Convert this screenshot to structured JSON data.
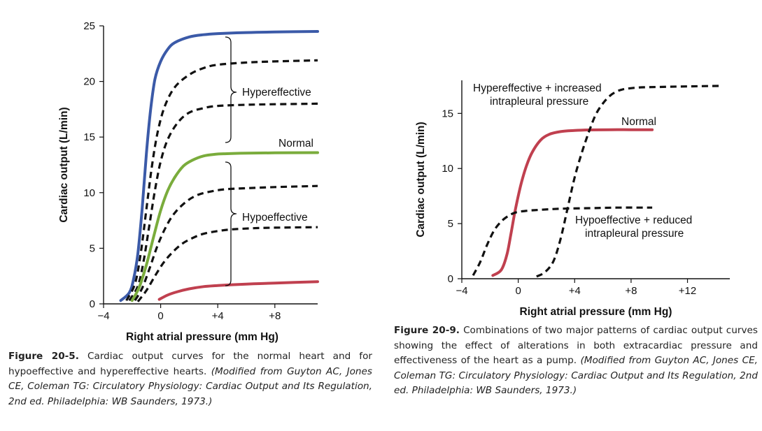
{
  "chart_data": [
    {
      "type": "line",
      "xlabel": "Right atrial pressure (mm Hg)",
      "ylabel": "Cardiac output (L/min)",
      "xlim": [
        -4,
        11
      ],
      "ylim": [
        0,
        25
      ],
      "x_ticks": [
        -4,
        0,
        4,
        8
      ],
      "x_tick_labels": [
        "−4",
        "0",
        "+4",
        "+8"
      ],
      "y_ticks": [
        0,
        5,
        10,
        15,
        20,
        25
      ],
      "y_tick_labels": [
        "0",
        "5",
        "10",
        "15",
        "20",
        "25"
      ],
      "grid": false,
      "series": [
        {
          "color": "#3b5aa8",
          "dash": false,
          "x": [
            -2.8,
            -2.2,
            -1.9,
            -1.6,
            -1.3,
            -1.0,
            -0.7,
            -0.4,
            0.0,
            0.5,
            1.0,
            2.0,
            3.0,
            4.0,
            6.0,
            8.0,
            11.0
          ],
          "y": [
            0.3,
            1.0,
            2.2,
            4.5,
            8.5,
            13.5,
            17.5,
            20.2,
            21.8,
            22.9,
            23.5,
            24.0,
            24.2,
            24.3,
            24.4,
            24.45,
            24.5
          ]
        },
        {
          "color": "#111111",
          "dash": true,
          "x": [
            -2.4,
            -1.8,
            -1.4,
            -1.0,
            -0.6,
            -0.2,
            0.3,
            1.0,
            2.0,
            3.0,
            4.0,
            6.0,
            8.0,
            11.0
          ],
          "y": [
            0.3,
            1.8,
            4.5,
            8.5,
            12.5,
            15.5,
            17.8,
            19.5,
            20.6,
            21.2,
            21.5,
            21.7,
            21.8,
            21.9
          ]
        },
        {
          "color": "#111111",
          "dash": true,
          "x": [
            -2.2,
            -1.6,
            -1.2,
            -0.8,
            -0.4,
            0.0,
            0.5,
            1.2,
            2.0,
            3.0,
            4.0,
            6.0,
            8.0,
            11.0
          ],
          "y": [
            0.3,
            1.6,
            3.8,
            7.0,
            10.2,
            12.8,
            14.8,
            16.3,
            17.2,
            17.6,
            17.8,
            17.9,
            17.95,
            18.0
          ]
        },
        {
          "color": "#7aac3c",
          "dash": false,
          "x": [
            -2.0,
            -1.5,
            -1.0,
            -0.5,
            0.0,
            0.5,
            1.0,
            1.6,
            2.2,
            3.0,
            3.8,
            4.5,
            6.0,
            8.0,
            11.0
          ],
          "y": [
            0.3,
            1.5,
            3.5,
            6.0,
            8.4,
            10.2,
            11.4,
            12.4,
            12.9,
            13.3,
            13.45,
            13.5,
            13.55,
            13.58,
            13.6
          ]
        },
        {
          "color": "#111111",
          "dash": true,
          "x": [
            -1.8,
            -1.3,
            -0.8,
            -0.2,
            0.4,
            1.0,
            1.8,
            2.6,
            3.5,
            4.5,
            6.0,
            8.0,
            11.0
          ],
          "y": [
            0.3,
            1.4,
            3.1,
            5.3,
            7.0,
            8.2,
            9.2,
            9.8,
            10.1,
            10.3,
            10.4,
            10.5,
            10.6
          ]
        },
        {
          "color": "#111111",
          "dash": true,
          "x": [
            -1.6,
            -1.0,
            -0.4,
            0.2,
            0.8,
            1.5,
            2.2,
            3.0,
            4.0,
            5.0,
            6.5,
            8.0,
            11.0
          ],
          "y": [
            0.2,
            1.2,
            2.5,
            3.7,
            4.6,
            5.4,
            5.9,
            6.3,
            6.55,
            6.7,
            6.8,
            6.85,
            6.9
          ]
        },
        {
          "color": "#c0404f",
          "dash": false,
          "x": [
            -0.1,
            0.5,
            1.2,
            2.0,
            3.0,
            4.0,
            5.0,
            6.5,
            8.0,
            11.0
          ],
          "y": [
            0.4,
            0.8,
            1.1,
            1.35,
            1.55,
            1.65,
            1.72,
            1.8,
            1.87,
            2.0
          ]
        }
      ],
      "annotations": [
        "Hypereffective",
        "Normal",
        "Hypoeffective"
      ]
    },
    {
      "type": "line",
      "xlabel": "Right atrial pressure (mm Hg)",
      "ylabel": "Cardiac output (L/min)",
      "xlim": [
        -4,
        15
      ],
      "ylim": [
        0,
        18
      ],
      "x_ticks": [
        -4,
        0,
        4,
        8,
        12
      ],
      "x_tick_labels": [
        "−4",
        "0",
        "+4",
        "+8",
        "+12"
      ],
      "y_ticks": [
        0,
        5,
        10,
        15
      ],
      "y_tick_labels": [
        "0",
        "5",
        "10",
        "15"
      ],
      "grid": false,
      "series": [
        {
          "color": "#c0404f",
          "dash": false,
          "x": [
            -1.8,
            -1.2,
            -0.8,
            -0.5,
            -0.2,
            0.2,
            0.6,
            1.0,
            1.6,
            2.2,
            3.0,
            4.0,
            5.0,
            6.5,
            8.0,
            9.5
          ],
          "y": [
            0.3,
            0.8,
            2.2,
            4.2,
            6.3,
            8.6,
            10.3,
            11.5,
            12.6,
            13.1,
            13.35,
            13.45,
            13.5,
            13.52,
            13.52,
            13.52
          ]
        },
        {
          "color": "#111111",
          "dash": true,
          "x": [
            -3.2,
            -2.7,
            -2.2,
            -1.7,
            -1.2,
            -0.7,
            -0.2,
            0.5,
            1.5,
            3.0,
            5.0,
            7.0,
            9.5
          ],
          "y": [
            0.3,
            1.5,
            3.1,
            4.4,
            5.2,
            5.7,
            6.0,
            6.15,
            6.25,
            6.35,
            6.4,
            6.45,
            6.45
          ]
        },
        {
          "color": "#111111",
          "dash": true,
          "x": [
            1.3,
            1.9,
            2.5,
            3.0,
            3.5,
            4.0,
            4.5,
            5.0,
            5.5,
            6.0,
            6.5,
            7.0,
            7.5,
            8.5,
            10.0,
            12.0,
            14.5
          ],
          "y": [
            0.2,
            0.6,
            1.6,
            3.6,
            6.4,
            9.2,
            11.4,
            13.3,
            14.9,
            15.9,
            16.6,
            17.0,
            17.2,
            17.35,
            17.4,
            17.45,
            17.5
          ]
        }
      ],
      "annotations": [
        "Hypereffective + increased intrapleural pressure",
        "Normal",
        "Hypoeffective + reduced intrapleural pressure"
      ]
    }
  ],
  "labels": {
    "hyper": "Hypereffective",
    "normal": "Normal",
    "hypo": "Hypoeffective",
    "r_hyper_1": "Hypereffective + increased",
    "r_hyper_2": "intrapleural pressure",
    "r_normal": "Normal",
    "r_hypo_1": "Hypoeffective + reduced",
    "r_hypo_2": "intrapleural pressure"
  },
  "captions": {
    "left": {
      "label": "Figure 20-5.",
      "text": " Cardiac output curves for the normal heart and for hypoeffective and hypereffective hearts. ",
      "cite": "(Modified from Guyton AC, Jones CE, Coleman TG: Circulatory Physiology: Cardiac Output and Its Regulation, 2nd ed. Philadelphia: WB Saunders, 1973.)"
    },
    "right": {
      "label": "Figure 20-9.",
      "text": "  Combinations of two major patterns of cardiac output curves showing the effect of alterations in both extracardiac pressure and effectiveness of the heart as a pump. ",
      "cite": "(Modified from Guyton AC, Jones CE, Coleman TG: Circulatory Physiology: Cardiac Output and Its Regulation, 2nd ed. Philadelphia: WB Saunders, 1973.)"
    }
  }
}
